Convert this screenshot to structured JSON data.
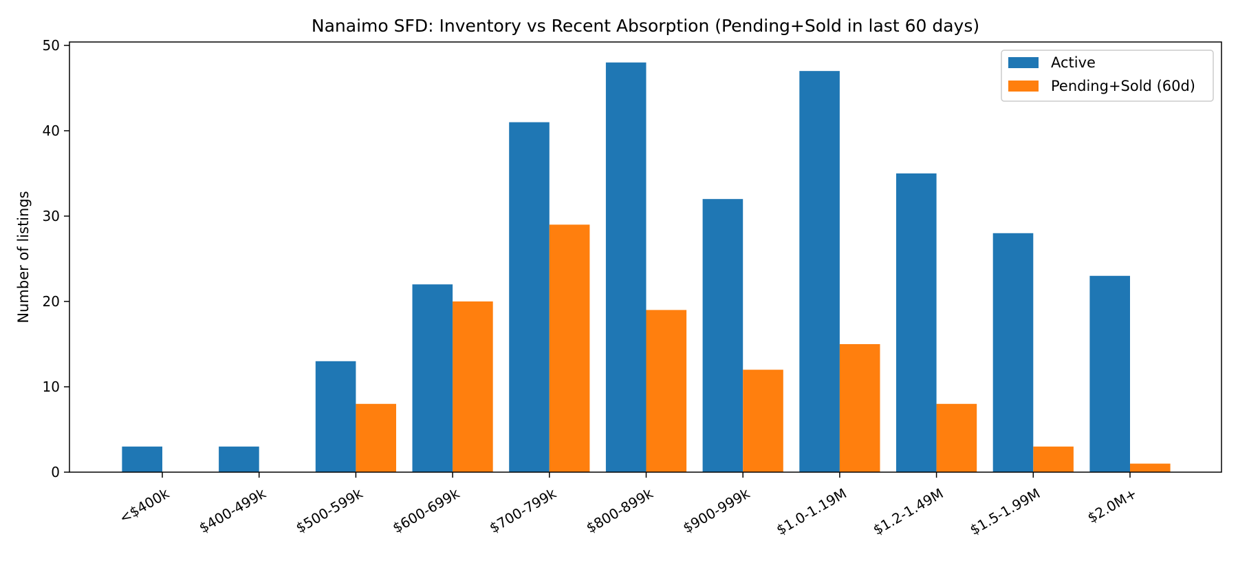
{
  "chart_data": {
    "type": "bar",
    "title": "Nanaimo SFD: Inventory vs Recent Absorption (Pending+Sold in last 60 days)",
    "xlabel": "",
    "ylabel": "Number of listings",
    "categories": [
      "<$400k",
      "$400-499k",
      "$500-599k",
      "$600-699k",
      "$700-799k",
      "$800-899k",
      "$900-999k",
      "$1.0-1.19M",
      "$1.2-1.49M",
      "$1.5-1.99M",
      "$2.0M+"
    ],
    "series": [
      {
        "name": "Active",
        "color": "#1f77b4",
        "values": [
          3,
          3,
          13,
          22,
          41,
          48,
          32,
          47,
          35,
          28,
          23
        ]
      },
      {
        "name": "Pending+Sold (60d)",
        "color": "#ff7f0e",
        "values": [
          0,
          0,
          8,
          20,
          29,
          19,
          12,
          15,
          8,
          3,
          1
        ]
      }
    ],
    "ylim": [
      0,
      50.4
    ],
    "yticks": [
      0,
      10,
      20,
      30,
      40,
      50
    ],
    "grid": false,
    "legend_position": "top-right"
  }
}
